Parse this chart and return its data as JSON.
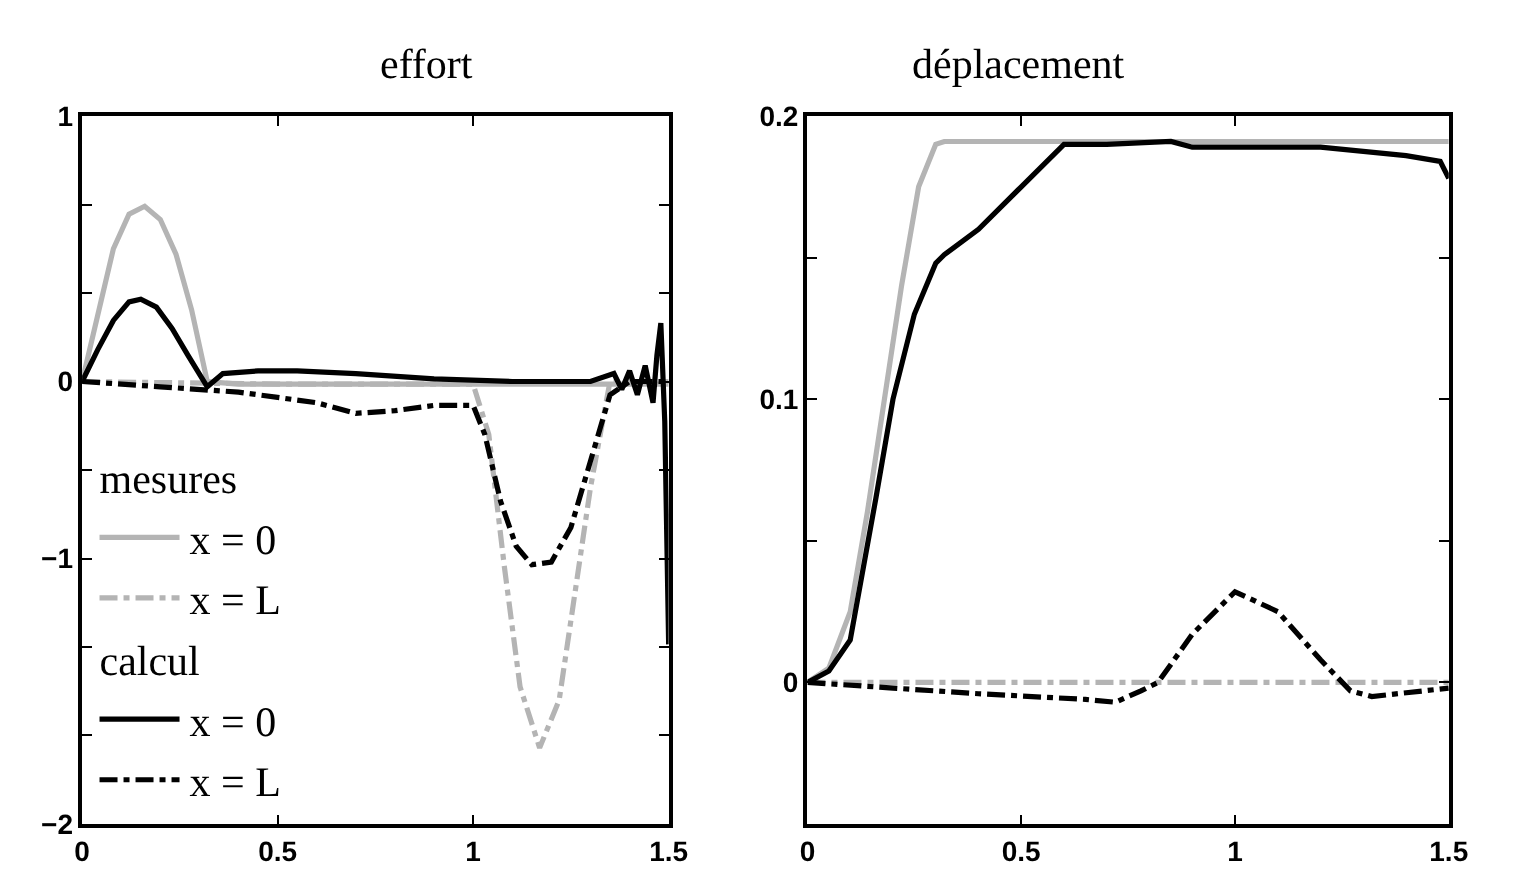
{
  "chart_data": [
    {
      "type": "line",
      "title": "effort",
      "xlim": [
        0,
        1.5
      ],
      "xticks": [
        0,
        0.5,
        1,
        1.5
      ],
      "ylim": [
        -1.6667,
        1
      ],
      "yticks": [
        1,
        {
          "value": 0.6667,
          "label": null
        },
        {
          "value": 0.3333,
          "label": null
        },
        0,
        {
          "value": -0.3333,
          "label": null
        },
        {
          "value": -0.6667,
          "label": "−1"
        },
        {
          "value": -1,
          "label": null
        },
        {
          "value": -1.3333,
          "label": null
        },
        {
          "value": -1.6667,
          "label": "−2"
        }
      ],
      "grid": false,
      "legend": "bottom left",
      "annotations": [
        "mesures",
        "calcul"
      ],
      "series": [
        {
          "name": "x = 0",
          "color": "#b4b4b4",
          "line_style": "solid",
          "x": [
            0,
            0.04,
            0.08,
            0.12,
            0.16,
            0.2,
            0.24,
            0.28,
            0.32,
            0.4,
            1.0,
            1.5
          ],
          "values": [
            0,
            0.25,
            0.5,
            0.63,
            0.66,
            0.61,
            0.48,
            0.27,
            0,
            -0.01,
            -0.01,
            -0.01
          ]
        },
        {
          "name": "x = L",
          "color": "#b4b4b4",
          "line_style": "dashdot",
          "x": [
            0,
            0.5,
            1.0,
            1.04,
            1.08,
            1.12,
            1.17,
            1.22,
            1.26,
            1.3,
            1.35,
            1.5
          ],
          "values": [
            0,
            -0.01,
            -0.01,
            -0.2,
            -0.7,
            -1.15,
            -1.38,
            -1.2,
            -0.8,
            -0.4,
            0,
            0
          ]
        },
        {
          "name": "x = 0",
          "color": "#000000",
          "line_style": "solid",
          "x": [
            0,
            0.04,
            0.08,
            0.12,
            0.15,
            0.19,
            0.23,
            0.27,
            0.32,
            0.36,
            0.45,
            0.55,
            0.7,
            0.9,
            1.1,
            1.3,
            1.36,
            1.38,
            1.4,
            1.42,
            1.44,
            1.46,
            1.47,
            1.48,
            1.49,
            1.5
          ],
          "values": [
            0,
            0.12,
            0.23,
            0.3,
            0.31,
            0.28,
            0.2,
            0.1,
            -0.02,
            0.03,
            0.04,
            0.04,
            0.03,
            0.01,
            0.0,
            0.0,
            0.03,
            -0.03,
            0.04,
            -0.05,
            0.06,
            -0.08,
            0.1,
            0.22,
            -0.15,
            -0.99
          ]
        },
        {
          "name": "x = L",
          "color": "#000000",
          "line_style": "dashdot",
          "x": [
            0,
            0.2,
            0.4,
            0.5,
            0.6,
            0.7,
            0.8,
            0.9,
            1.0,
            1.03,
            1.07,
            1.11,
            1.15,
            1.2,
            1.25,
            1.3,
            1.35,
            1.4,
            1.5
          ],
          "values": [
            0,
            -0.02,
            -0.04,
            -0.06,
            -0.08,
            -0.12,
            -0.11,
            -0.09,
            -0.09,
            -0.2,
            -0.45,
            -0.62,
            -0.69,
            -0.68,
            -0.55,
            -0.3,
            -0.05,
            0,
            0
          ]
        }
      ]
    },
    {
      "type": "line",
      "title": "déplacement",
      "xlim": [
        0,
        1.5
      ],
      "xticks": [
        0,
        0.5,
        1,
        1.5
      ],
      "ylim": [
        -0.05,
        0.2
      ],
      "yticks": [
        0.2,
        {
          "value": 0.15,
          "label": null
        },
        0.1,
        {
          "value": 0.05,
          "label": null
        },
        0,
        {
          "value": -0.05,
          "label": null
        }
      ],
      "grid": false,
      "legend": false,
      "series": [
        {
          "color": "#b4b4b4",
          "line_style": "solid",
          "x": [
            0,
            0.05,
            0.1,
            0.14,
            0.18,
            0.22,
            0.26,
            0.3,
            0.32,
            1.5
          ],
          "values": [
            0,
            0.005,
            0.025,
            0.06,
            0.1,
            0.14,
            0.175,
            0.19,
            0.191,
            0.191
          ]
        },
        {
          "color": "#b4b4b4",
          "line_style": "dashdot",
          "x": [
            0,
            1.5
          ],
          "values": [
            0,
            0
          ]
        },
        {
          "color": "#000000",
          "line_style": "solid",
          "x": [
            0,
            0.05,
            0.1,
            0.16,
            0.2,
            0.25,
            0.3,
            0.32,
            0.4,
            0.5,
            0.6,
            0.7,
            0.85,
            0.9,
            1.2,
            1.4,
            1.48,
            1.5
          ],
          "values": [
            0,
            0.004,
            0.015,
            0.065,
            0.1,
            0.13,
            0.148,
            0.151,
            0.16,
            0.175,
            0.19,
            0.19,
            0.191,
            0.189,
            0.189,
            0.186,
            0.184,
            0.178
          ]
        },
        {
          "color": "#000000",
          "line_style": "dashdot",
          "x": [
            0,
            0.2,
            0.4,
            0.65,
            0.72,
            0.78,
            0.82,
            0.9,
            1.0,
            1.1,
            1.2,
            1.27,
            1.32,
            1.5
          ],
          "values": [
            0,
            -0.002,
            -0.004,
            -0.006,
            -0.007,
            -0.003,
            0,
            0.017,
            0.032,
            0.025,
            0.008,
            -0.003,
            -0.005,
            -0.002
          ]
        }
      ]
    }
  ]
}
